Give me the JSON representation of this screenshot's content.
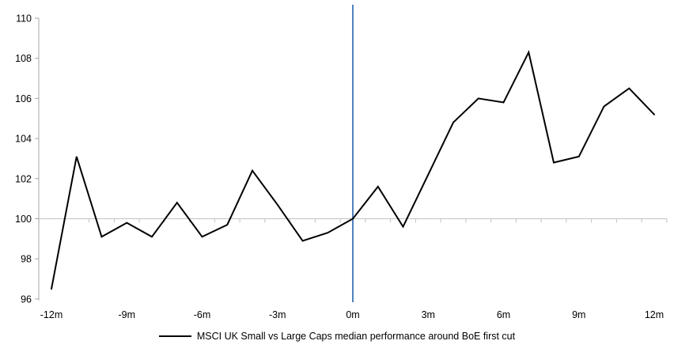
{
  "chart_data": {
    "type": "line",
    "series": [
      {
        "name": "MSCI UK Small vs Large Caps median performance around BoE first cut",
        "x_months": [
          -12,
          -11,
          -10,
          -9,
          -8,
          -7,
          -6,
          -5,
          -4,
          -3,
          -2,
          -1,
          0,
          1,
          2,
          3,
          4,
          5,
          6,
          7,
          8,
          9,
          10,
          11,
          12
        ],
        "values": [
          96.5,
          103.1,
          99.1,
          99.8,
          99.1,
          100.8,
          99.1,
          99.7,
          102.4,
          100.7,
          98.9,
          99.3,
          100.0,
          101.6,
          99.6,
          102.2,
          104.8,
          106.0,
          105.8,
          108.3,
          102.8,
          103.1,
          105.6,
          106.5,
          105.2
        ]
      }
    ],
    "x_tick_labels": [
      "-12m",
      "-9m",
      "-6m",
      "-3m",
      "0m",
      "3m",
      "6m",
      "9m",
      "12m"
    ],
    "x_tick_months": [
      -12,
      -9,
      -6,
      -3,
      0,
      3,
      6,
      9,
      12
    ],
    "y_tick_labels": [
      "96",
      "98",
      "100",
      "102",
      "104",
      "106",
      "108",
      "110"
    ],
    "y_tick_values": [
      96,
      98,
      100,
      102,
      104,
      106,
      108,
      110
    ],
    "ylim": [
      96,
      110
    ],
    "xlim_months": [
      -12.5,
      12.5
    ],
    "baseline_value": 100,
    "event_line": {
      "month": 0
    },
    "grid": "off",
    "legend_position": "bottom",
    "legend": {
      "label": "MSCI UK Small vs Large Caps median performance around BoE first cut"
    },
    "colors": {
      "series_line": "#000000",
      "baseline_line": "#C2C2C2",
      "event_line": "#4F81BD",
      "axis_line": "#A6A6A6",
      "tick_text": "#000000"
    }
  }
}
